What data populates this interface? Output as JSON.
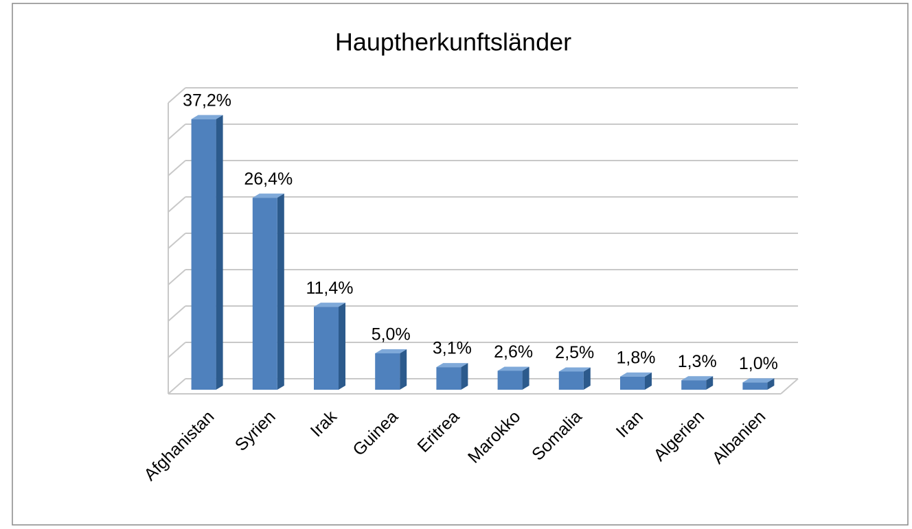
{
  "chart_data": {
    "type": "bar3d",
    "title": "Hauptherkunftsländer",
    "categories": [
      "Afghanistan",
      "Syrien",
      "Irak",
      "Guinea",
      "Eritrea",
      "Marokko",
      "Somalia",
      "Iran",
      "Algerien",
      "Albanien"
    ],
    "values": [
      37.2,
      26.4,
      11.4,
      5.0,
      3.1,
      2.6,
      2.5,
      1.8,
      1.3,
      1.0
    ],
    "value_labels": [
      "37,2%",
      "26,4%",
      "11,4%",
      "5,0%",
      "3,1%",
      "2,6%",
      "2,5%",
      "1,8%",
      "1,3%",
      "1,0%"
    ],
    "color": "#4f81bd",
    "ylim": [
      0,
      40
    ],
    "yticks": [
      0,
      5,
      10,
      15,
      20,
      25,
      30,
      35,
      40
    ],
    "grid": true
  }
}
